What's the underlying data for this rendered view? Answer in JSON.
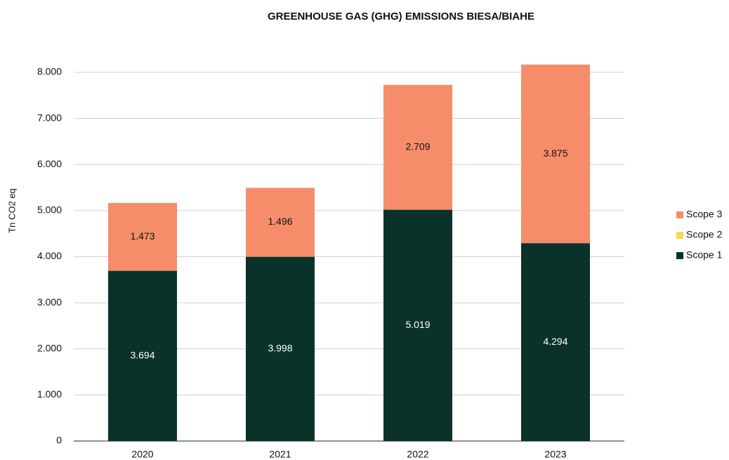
{
  "chart_data": {
    "type": "stacked_bar",
    "title": "GREENHOUSE GAS (GHG) EMISSIONS BIESA/BIAHE",
    "y_label": "Tn CO2 eq",
    "categories": [
      "2020",
      "2021",
      "2022",
      "2023"
    ],
    "series": [
      {
        "name": "Scope 1",
        "color": "#0a322b",
        "values": [
          3694,
          3998,
          5019,
          4294
        ],
        "value_labels": [
          "3.694",
          "3.998",
          "5.019",
          "4.294"
        ]
      },
      {
        "name": "Scope 2",
        "color": "#f7d857",
        "values": [
          0,
          0,
          0,
          0
        ]
      },
      {
        "name": "Scope 3",
        "color": "#f58d6a",
        "values": [
          1473,
          1496,
          2709,
          3875
        ],
        "value_labels": [
          "1.473",
          "1.496",
          "2.709",
          "3.875"
        ]
      }
    ],
    "ylim": [
      0,
      8000
    ],
    "yticks": [
      0,
      {
        "value": 1000,
        "label": "1.000"
      },
      {
        "value": 2000,
        "label": "2.000"
      },
      {
        "value": 3000,
        "label": "3.000"
      },
      {
        "value": 4000,
        "label": "4.000"
      },
      {
        "value": 5000,
        "label": "5.000"
      },
      {
        "value": 6000,
        "label": "6.000"
      },
      {
        "value": 7000,
        "label": "7.000"
      },
      {
        "value": 8000,
        "label": "8.000"
      }
    ],
    "grid": true,
    "legend": "right"
  }
}
